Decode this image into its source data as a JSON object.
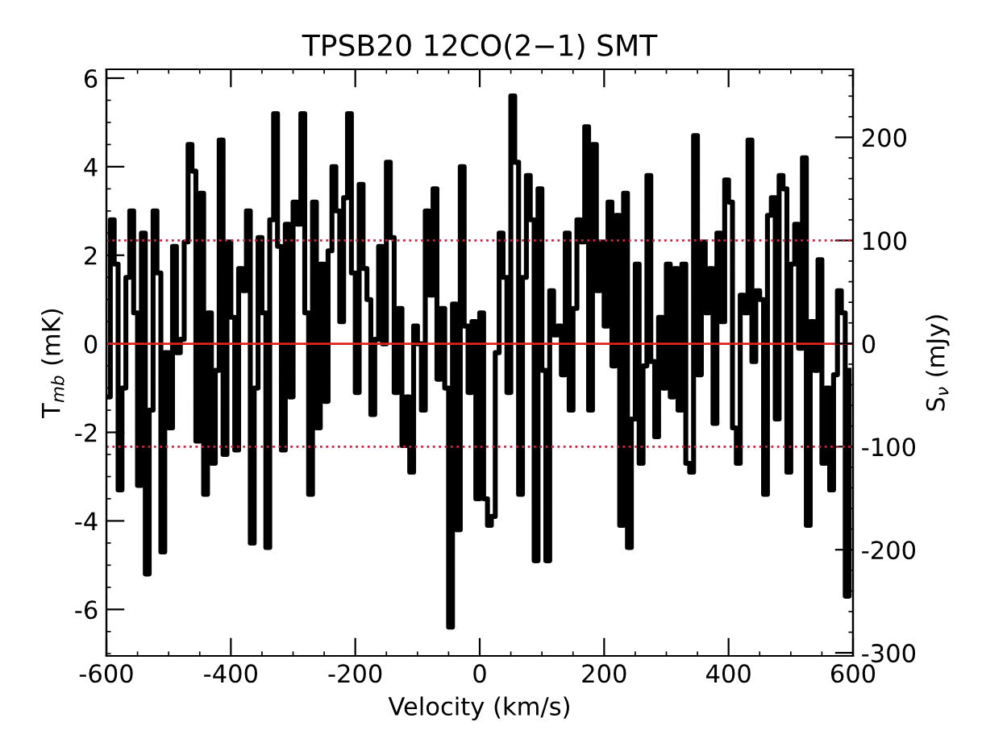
{
  "chart_data": {
    "type": "step",
    "title": "TPSB20 12CO(2−1) SMT",
    "xlabel": "Velocity (km/s)",
    "ylabel": "T$_{mb}$ (mK)",
    "y2label": "S$_{ν}$ (mJy)",
    "xlim": [
      -600,
      600
    ],
    "xticks": [
      -600,
      -400,
      -200,
      0,
      200,
      400,
      600
    ],
    "ylim": [
      -7.05,
      6.2
    ],
    "yticks": [
      -6,
      -4,
      -2,
      0,
      2,
      4,
      6
    ],
    "y2lim": [
      -303,
      266
    ],
    "y2ticks": [
      -300,
      -200,
      -100,
      0,
      100,
      200
    ],
    "grid": false,
    "legend": false,
    "line_style": "solid",
    "ref_lines": [
      {
        "axis": "y",
        "value": 0,
        "color": "#dd2222",
        "line_style": "solid"
      },
      {
        "axis": "y2",
        "value": 100,
        "color": "#cc2244",
        "line_style": "dotted"
      },
      {
        "axis": "y2",
        "value": -100,
        "color": "#cc2244",
        "line_style": "dotted"
      }
    ],
    "series": [
      {
        "color": "#000000",
        "x": [
          -600,
          -593.75,
          -587.5,
          -581.25,
          -575,
          -568.75,
          -562.5,
          -556.25,
          -550,
          -543.75,
          -537.5,
          -531.25,
          -525,
          -518.75,
          -512.5,
          -506.25,
          -500,
          -493.75,
          -487.5,
          -481.25,
          -475,
          -468.75,
          -462.5,
          -456.25,
          -450,
          -443.75,
          -437.5,
          -431.25,
          -425,
          -418.75,
          -412.5,
          -406.25,
          -400,
          -393.75,
          -387.5,
          -381.25,
          -375,
          -368.75,
          -362.5,
          -356.25,
          -350,
          -343.75,
          -337.5,
          -331.25,
          -325,
          -318.75,
          -312.5,
          -306.25,
          -300,
          -293.75,
          -287.5,
          -281.25,
          -275,
          -268.75,
          -262.5,
          -256.25,
          -250,
          -243.75,
          -237.5,
          -231.25,
          -225,
          -218.75,
          -212.5,
          -206.25,
          -200,
          -193.75,
          -187.5,
          -181.25,
          -175,
          -168.75,
          -162.5,
          -156.25,
          -150,
          -143.75,
          -137.5,
          -131.25,
          -125,
          -118.75,
          -112.5,
          -106.25,
          -100,
          -93.75,
          -87.5,
          -81.25,
          -75,
          -68.75,
          -62.5,
          -56.25,
          -50,
          -43.75,
          -37.5,
          -31.25,
          -25,
          -18.75,
          -12.5,
          -6.25,
          0,
          6.25,
          12.5,
          18.75,
          25,
          31.25,
          37.5,
          43.75,
          50,
          56.25,
          62.5,
          68.75,
          75,
          81.25,
          87.5,
          93.75,
          100,
          106.25,
          112.5,
          118.75,
          125,
          131.25,
          137.5,
          143.75,
          150,
          156.25,
          162.5,
          168.75,
          175,
          181.25,
          187.5,
          193.75,
          200,
          206.25,
          212.5,
          218.75,
          225,
          231.25,
          237.5,
          243.75,
          250,
          256.25,
          262.5,
          268.75,
          275,
          281.25,
          287.5,
          293.75,
          300,
          306.25,
          312.5,
          318.75,
          325,
          331.25,
          337.5,
          343.75,
          350,
          356.25,
          362.5,
          368.75,
          375,
          381.25,
          387.5,
          393.75,
          400,
          406.25,
          412.5,
          418.75,
          425,
          431.25,
          437.5,
          443.75,
          450,
          456.25,
          462.5,
          468.75,
          475,
          481.25,
          487.5,
          493.75,
          500,
          506.25,
          512.5,
          518.75,
          525,
          531.25,
          537.5,
          543.75,
          550,
          556.25,
          562.5,
          568.75,
          575,
          581.25,
          587.5,
          593.75
        ],
        "values": [
          -1.2,
          2.8,
          1.8,
          -3.3,
          -1,
          1.5,
          3.0,
          0.7,
          -3.2,
          2.5,
          -5.2,
          -1.5,
          3.0,
          1.6,
          -4.7,
          -0.2,
          -1.9,
          2.2,
          -0.2,
          0.1,
          2.3,
          4.5,
          3.9,
          -2.2,
          3.4,
          -3.4,
          0.7,
          -2.7,
          -0.6,
          4.6,
          -2.5,
          2.3,
          0.6,
          -2.4,
          1.7,
          1.2,
          3.0,
          -4.5,
          -1,
          2.4,
          0.7,
          -4.6,
          2.8,
          5.2,
          2.2,
          -2.4,
          2.7,
          -1.2,
          3.2,
          2.7,
          5.2,
          0.7,
          -3.4,
          3.2,
          -1.9,
          1.8,
          -1.3,
          2.1,
          4.0,
          3.0,
          0.5,
          3.3,
          5.2,
          1.6,
          -1.1,
          3.6,
          1.7,
          1.0,
          -1.6,
          0.1,
          2.2,
          0,
          4.1,
          2.4,
          -1.1,
          0.8,
          -2.3,
          -1.2,
          -2.9,
          0.4,
          0,
          -1.5,
          3.0,
          1.1,
          3.5,
          -0.8,
          0.8,
          -1,
          -6.4,
          0.9,
          -4.2,
          4.0,
          0.4,
          -1.1,
          0.5,
          -3.5,
          0.7,
          -3.5,
          -4.1,
          -3.9,
          -0.2,
          2.5,
          1.5,
          -1.1,
          5.6,
          4.1,
          -3.4,
          1.5,
          3.8,
          2.8,
          -4.9,
          3.5,
          -0.6,
          -4.9,
          1.2,
          0.2,
          0.4,
          -0.7,
          2.5,
          -1.5,
          0.8,
          2.8,
          2.3,
          4.9,
          -1.5,
          4.5,
          1.2,
          2.3,
          0.4,
          3.2,
          -0.5,
          2.9,
          -4.1,
          3.4,
          -4.6,
          -1.7,
          1.8,
          -2.7,
          -0.5,
          3.8,
          -0.4,
          -2.1,
          0.6,
          -1,
          1.8,
          -1.2,
          1.7,
          -1.5,
          1.8,
          -2.7,
          -2.9,
          4.7,
          -0.7,
          2.3,
          0.7,
          1.7,
          -1.8,
          2.5,
          0.5,
          3.7,
          3.2,
          -1.9,
          -2.7,
          1.1,
          0.7,
          4.6,
          -0.4,
          1.2,
          1.0,
          -3.4,
          2.9,
          3.3,
          -1.7,
          3.8,
          3.5,
          -2.9,
          1.8,
          2.7,
          -0.1,
          4.2,
          -4.1,
          0.5,
          -0.6,
          1.9,
          -2.7,
          -1,
          -3.3,
          -0.7,
          1.2,
          0.7,
          -5.7,
          -0.6
        ]
      }
    ]
  }
}
